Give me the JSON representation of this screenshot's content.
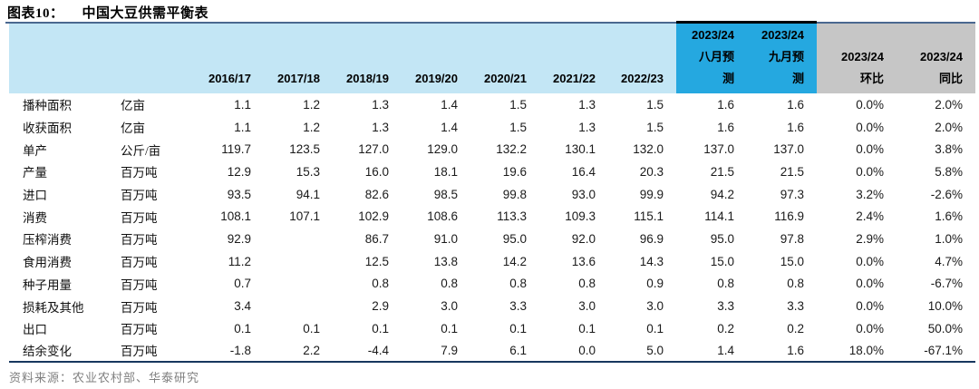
{
  "title": {
    "prefix": "图表10：",
    "text": "中国大豆供需平衡表"
  },
  "source_note": "资料来源：农业农村部、华泰研究",
  "colors": {
    "header_light_blue": "#c3e6f5",
    "header_dark_blue": "#25a8e0",
    "header_gray": "#c6c6c6",
    "title_rule_navy": "#4a6890",
    "forecast_rule_black": "#000000",
    "table_bottom_rule": "#17375e",
    "source_text_gray": "#808080"
  },
  "header": {
    "years": [
      "2016/17",
      "2017/18",
      "2018/19",
      "2019/20",
      "2020/21",
      "2021/22",
      "2022/23"
    ],
    "forecast": [
      {
        "lines": [
          "2023/24",
          "八月预",
          "测"
        ]
      },
      {
        "lines": [
          "2023/24",
          "九月预",
          "测"
        ]
      }
    ],
    "compare": [
      {
        "lines": [
          "2023/24",
          "环比"
        ]
      },
      {
        "lines": [
          "2023/24",
          "同比"
        ]
      }
    ]
  },
  "chart_data": {
    "type": "table",
    "title": "中国大豆供需平衡表",
    "columns": [
      "",
      "",
      "2016/17",
      "2017/18",
      "2018/19",
      "2019/20",
      "2020/21",
      "2021/22",
      "2022/23",
      "2023/24八月预测",
      "2023/24九月预测",
      "2023/24环比",
      "2023/24同比"
    ],
    "rows": [
      [
        "播种面积",
        "亿亩",
        "1.1",
        "1.2",
        "1.3",
        "1.4",
        "1.5",
        "1.3",
        "1.5",
        "1.6",
        "1.6",
        "0.0%",
        "2.0%"
      ],
      [
        "收获面积",
        "亿亩",
        "1.1",
        "1.2",
        "1.3",
        "1.4",
        "1.5",
        "1.3",
        "1.5",
        "1.6",
        "1.6",
        "0.0%",
        "2.0%"
      ],
      [
        "单产",
        "公斤/亩",
        "119.7",
        "123.5",
        "127.0",
        "129.0",
        "132.2",
        "130.1",
        "132.0",
        "137.0",
        "137.0",
        "0.0%",
        "3.8%"
      ],
      [
        "产量",
        "百万吨",
        "12.9",
        "15.3",
        "16.0",
        "18.1",
        "19.6",
        "16.4",
        "20.3",
        "21.5",
        "21.5",
        "0.0%",
        "5.8%"
      ],
      [
        "进口",
        "百万吨",
        "93.5",
        "94.1",
        "82.6",
        "98.5",
        "99.8",
        "93.0",
        "99.9",
        "94.2",
        "97.3",
        "3.2%",
        "-2.6%"
      ],
      [
        "消费",
        "百万吨",
        "108.1",
        "107.1",
        "102.9",
        "108.6",
        "113.3",
        "109.3",
        "115.1",
        "114.1",
        "116.9",
        "2.4%",
        "1.6%"
      ],
      [
        "压榨消费",
        "百万吨",
        "92.9",
        "",
        "86.7",
        "91.0",
        "95.0",
        "92.0",
        "96.9",
        "95.0",
        "97.8",
        "2.9%",
        "1.0%"
      ],
      [
        "食用消费",
        "百万吨",
        "11.2",
        "",
        "12.5",
        "13.8",
        "14.2",
        "13.6",
        "14.3",
        "15.0",
        "15.0",
        "0.0%",
        "4.7%"
      ],
      [
        "种子用量",
        "百万吨",
        "0.7",
        "",
        "0.8",
        "0.8",
        "0.8",
        "0.8",
        "0.9",
        "0.8",
        "0.8",
        "0.0%",
        "-6.7%"
      ],
      [
        "损耗及其他",
        "百万吨",
        "3.4",
        "",
        "2.9",
        "3.0",
        "3.3",
        "3.0",
        "3.0",
        "3.3",
        "3.3",
        "0.0%",
        "10.0%"
      ],
      [
        "出口",
        "百万吨",
        "0.1",
        "0.1",
        "0.1",
        "0.1",
        "0.1",
        "0.1",
        "0.1",
        "0.2",
        "0.2",
        "0.0%",
        "50.0%"
      ],
      [
        "结余变化",
        "百万吨",
        "-1.8",
        "2.2",
        "-4.4",
        "7.9",
        "6.1",
        "0.0",
        "5.0",
        "1.4",
        "1.6",
        "18.0%",
        "-67.1%"
      ]
    ]
  }
}
